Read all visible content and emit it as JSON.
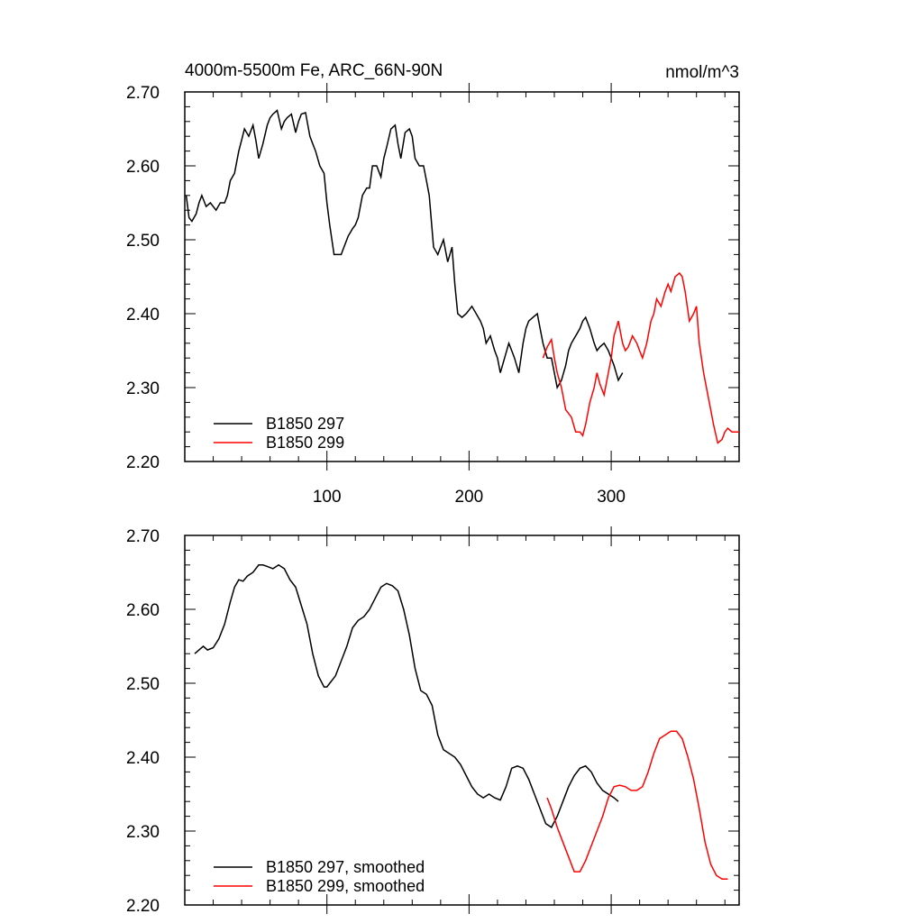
{
  "chart_data": [
    {
      "type": "line",
      "title": "4000m-5500m Fe, ARC_66N-90N",
      "units": "nmol/m^3",
      "xlabel": "",
      "ylabel": "",
      "xlim": [
        0,
        390
      ],
      "ylim": [
        2.2,
        2.7
      ],
      "x_ticks": [
        100,
        200,
        300
      ],
      "y_ticks": [
        "2.70",
        "2.60",
        "2.50",
        "2.40",
        "2.30",
        "2.20"
      ],
      "legend_position": "bottom-left",
      "series": [
        {
          "name": "B1850 297",
          "color": "#000000",
          "x": [
            1,
            3,
            5,
            8,
            10,
            12,
            15,
            18,
            20,
            22,
            25,
            28,
            30,
            32,
            35,
            38,
            40,
            42,
            45,
            48,
            50,
            52,
            55,
            58,
            60,
            62,
            65,
            68,
            70,
            72,
            75,
            78,
            80,
            82,
            85,
            88,
            90,
            92,
            95,
            98,
            100,
            102,
            105,
            108,
            110,
            112,
            115,
            118,
            120,
            122,
            125,
            128,
            130,
            132,
            135,
            138,
            140,
            142,
            145,
            148,
            150,
            152,
            155,
            158,
            160,
            162,
            165,
            168,
            170,
            172,
            175,
            178,
            180,
            182,
            185,
            188,
            190,
            192,
            195,
            198,
            200,
            202,
            205,
            208,
            210,
            212,
            215,
            218,
            220,
            222,
            225,
            228,
            230,
            232,
            235,
            238,
            240,
            242,
            245,
            248,
            250,
            252,
            255,
            258,
            260,
            262,
            265,
            268,
            270,
            272,
            275,
            278,
            280,
            282,
            285,
            288,
            290,
            292,
            295,
            298,
            300,
            302,
            305,
            308
          ],
          "values": [
            2.56,
            2.53,
            2.525,
            2.535,
            2.55,
            2.56,
            2.545,
            2.55,
            2.545,
            2.54,
            2.55,
            2.55,
            2.56,
            2.58,
            2.59,
            2.62,
            2.635,
            2.65,
            2.64,
            2.655,
            2.635,
            2.61,
            2.63,
            2.655,
            2.665,
            2.67,
            2.675,
            2.65,
            2.66,
            2.665,
            2.67,
            2.645,
            2.66,
            2.67,
            2.672,
            2.64,
            2.63,
            2.62,
            2.6,
            2.59,
            2.55,
            2.52,
            2.48,
            2.48,
            2.48,
            2.49,
            2.505,
            2.515,
            2.52,
            2.53,
            2.56,
            2.57,
            2.57,
            2.6,
            2.6,
            2.585,
            2.61,
            2.625,
            2.65,
            2.655,
            2.63,
            2.61,
            2.645,
            2.65,
            2.64,
            2.61,
            2.6,
            2.6,
            2.58,
            2.56,
            2.49,
            2.48,
            2.49,
            2.5,
            2.47,
            2.49,
            2.44,
            2.4,
            2.395,
            2.4,
            2.405,
            2.41,
            2.4,
            2.39,
            2.38,
            2.36,
            2.37,
            2.35,
            2.34,
            2.32,
            2.34,
            2.36,
            2.35,
            2.34,
            2.32,
            2.36,
            2.38,
            2.39,
            2.395,
            2.4,
            2.38,
            2.36,
            2.34,
            2.34,
            2.32,
            2.3,
            2.31,
            2.33,
            2.35,
            2.36,
            2.37,
            2.38,
            2.39,
            2.395,
            2.38,
            2.36,
            2.35,
            2.355,
            2.36,
            2.35,
            2.34,
            2.33,
            2.31,
            2.32
          ]
        },
        {
          "name": "B1850 299",
          "color": "#ff0000",
          "x": [
            252,
            255,
            258,
            260,
            262,
            265,
            268,
            270,
            272,
            275,
            278,
            280,
            282,
            285,
            288,
            290,
            292,
            295,
            298,
            300,
            302,
            305,
            308,
            310,
            312,
            315,
            318,
            320,
            322,
            325,
            328,
            330,
            332,
            335,
            338,
            340,
            342,
            345,
            348,
            350,
            352,
            355,
            358,
            360,
            362,
            365,
            368,
            370,
            372,
            375,
            378,
            380,
            382,
            385,
            388,
            390
          ],
          "values": [
            2.34,
            2.355,
            2.365,
            2.34,
            2.32,
            2.3,
            2.27,
            2.265,
            2.26,
            2.24,
            2.24,
            2.235,
            2.25,
            2.28,
            2.3,
            2.32,
            2.305,
            2.29,
            2.32,
            2.34,
            2.37,
            2.39,
            2.36,
            2.35,
            2.355,
            2.37,
            2.36,
            2.35,
            2.34,
            2.36,
            2.39,
            2.4,
            2.42,
            2.41,
            2.43,
            2.44,
            2.43,
            2.45,
            2.455,
            2.45,
            2.43,
            2.39,
            2.4,
            2.41,
            2.36,
            2.32,
            2.29,
            2.27,
            2.25,
            2.225,
            2.23,
            2.24,
            2.245,
            2.24,
            2.24,
            2.24
          ]
        }
      ]
    },
    {
      "type": "line",
      "title": "",
      "xlabel": "",
      "ylabel": "",
      "xlim": [
        0,
        390
      ],
      "ylim": [
        2.2,
        2.7
      ],
      "x_ticks": [
        100,
        200,
        300
      ],
      "y_ticks": [
        "2.70",
        "2.60",
        "2.50",
        "2.40",
        "2.30",
        "2.20"
      ],
      "legend_position": "bottom-left",
      "series": [
        {
          "name": "B1850 297, smoothed",
          "color": "#000000",
          "x": [
            7,
            10,
            13,
            16,
            20,
            24,
            28,
            32,
            35,
            38,
            41,
            44,
            48,
            52,
            55,
            58,
            62,
            66,
            70,
            74,
            78,
            82,
            86,
            90,
            94,
            98,
            100,
            102,
            104,
            106,
            110,
            114,
            118,
            122,
            126,
            130,
            134,
            138,
            142,
            146,
            150,
            154,
            158,
            162,
            166,
            170,
            174,
            178,
            182,
            186,
            190,
            194,
            198,
            202,
            206,
            210,
            214,
            218,
            222,
            226,
            230,
            234,
            238,
            242,
            246,
            250,
            254,
            258,
            262,
            266,
            270,
            274,
            278,
            282,
            286,
            290,
            294,
            298,
            302,
            305
          ],
          "values": [
            2.54,
            2.545,
            2.55,
            2.545,
            2.548,
            2.56,
            2.58,
            2.61,
            2.63,
            2.64,
            2.638,
            2.645,
            2.65,
            2.66,
            2.66,
            2.658,
            2.655,
            2.66,
            2.655,
            2.64,
            2.63,
            2.605,
            2.58,
            2.54,
            2.51,
            2.495,
            2.495,
            2.5,
            2.505,
            2.51,
            2.53,
            2.55,
            2.575,
            2.585,
            2.59,
            2.6,
            2.615,
            2.63,
            2.635,
            2.632,
            2.625,
            2.6,
            2.565,
            2.52,
            2.49,
            2.485,
            2.47,
            2.43,
            2.41,
            2.405,
            2.4,
            2.39,
            2.375,
            2.36,
            2.35,
            2.345,
            2.35,
            2.345,
            2.342,
            2.36,
            2.385,
            2.388,
            2.385,
            2.37,
            2.35,
            2.33,
            2.31,
            2.305,
            2.32,
            2.34,
            2.36,
            2.375,
            2.385,
            2.388,
            2.38,
            2.365,
            2.355,
            2.35,
            2.345,
            2.34
          ]
        },
        {
          "name": "B1850 299, smoothed",
          "color": "#ff0000",
          "x": [
            255,
            258,
            262,
            266,
            270,
            274,
            278,
            282,
            286,
            290,
            294,
            298,
            302,
            306,
            310,
            314,
            318,
            322,
            326,
            330,
            334,
            338,
            342,
            346,
            350,
            354,
            358,
            362,
            366,
            370,
            374,
            378,
            382
          ],
          "values": [
            2.345,
            2.33,
            2.305,
            2.285,
            2.265,
            2.245,
            2.245,
            2.26,
            2.28,
            2.3,
            2.32,
            2.345,
            2.36,
            2.362,
            2.36,
            2.355,
            2.355,
            2.36,
            2.38,
            2.405,
            2.425,
            2.43,
            2.435,
            2.435,
            2.425,
            2.4,
            2.37,
            2.33,
            2.285,
            2.255,
            2.24,
            2.235,
            2.235
          ]
        }
      ]
    }
  ]
}
